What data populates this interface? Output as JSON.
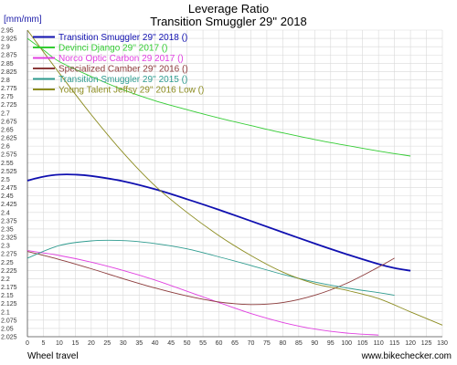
{
  "chart_data": {
    "type": "line",
    "title": "Leverage Ratio",
    "subtitle": "Transition Smuggler 29'' 2018",
    "ylabel": "[mm/mm]",
    "xlabel": "Wheel travel",
    "watermark": "www.bikechecker.com",
    "xlim": [
      0,
      130
    ],
    "ylim": [
      2.025,
      2.95
    ],
    "xticks": [
      0,
      5,
      10,
      15,
      20,
      25,
      30,
      35,
      40,
      45,
      50,
      55,
      60,
      65,
      70,
      75,
      80,
      85,
      90,
      95,
      100,
      105,
      110,
      115,
      120,
      125,
      130
    ],
    "yticks": [
      2.025,
      2.05,
      2.075,
      2.1,
      2.125,
      2.15,
      2.175,
      2.2,
      2.225,
      2.25,
      2.275,
      2.3,
      2.325,
      2.35,
      2.375,
      2.4,
      2.425,
      2.45,
      2.475,
      2.5,
      2.525,
      2.55,
      2.575,
      2.6,
      2.625,
      2.65,
      2.675,
      2.7,
      2.725,
      2.75,
      2.775,
      2.8,
      2.825,
      2.85,
      2.875,
      2.9,
      2.925,
      2.95
    ],
    "grid": true,
    "legend_position": "top-left",
    "series": [
      {
        "name": "Transition Smuggler 29'' 2018 ()",
        "color": "#1010b0",
        "width": 1.8,
        "x": [
          0,
          5,
          10,
          15,
          20,
          30,
          40,
          50,
          60,
          70,
          80,
          90,
          100,
          110,
          115,
          120
        ],
        "y": [
          2.496,
          2.508,
          2.514,
          2.514,
          2.51,
          2.494,
          2.47,
          2.44,
          2.408,
          2.374,
          2.34,
          2.306,
          2.274,
          2.244,
          2.232,
          2.224
        ]
      },
      {
        "name": "Devinci Django 29'' 2017 ()",
        "color": "#33cc33",
        "width": 0.9,
        "x": [
          0,
          5,
          10,
          20,
          30,
          40,
          50,
          60,
          70,
          80,
          90,
          100,
          110,
          120
        ],
        "y": [
          2.925,
          2.89,
          2.855,
          2.81,
          2.77,
          2.737,
          2.71,
          2.685,
          2.662,
          2.64,
          2.62,
          2.602,
          2.585,
          2.57
        ]
      },
      {
        "name": "Norco Optic Carbon 29 2017 ()",
        "color": "#e040e0",
        "width": 0.9,
        "x": [
          0,
          10,
          20,
          30,
          40,
          50,
          60,
          70,
          80,
          90,
          100,
          110
        ],
        "y": [
          2.285,
          2.27,
          2.25,
          2.225,
          2.196,
          2.162,
          2.128,
          2.095,
          2.068,
          2.048,
          2.036,
          2.03
        ]
      },
      {
        "name": "Specialized Camber 29'' 2016 ()",
        "color": "#8b3a3a",
        "width": 0.9,
        "x": [
          0,
          10,
          20,
          30,
          40,
          50,
          60,
          70,
          80,
          90,
          100,
          110,
          115
        ],
        "y": [
          2.282,
          2.258,
          2.23,
          2.2,
          2.172,
          2.148,
          2.13,
          2.122,
          2.128,
          2.15,
          2.186,
          2.235,
          2.262
        ]
      },
      {
        "name": "Transition Smuggler 29'' 2015 ()",
        "color": "#2e9b8f",
        "width": 0.9,
        "x": [
          0,
          10,
          20,
          30,
          40,
          50,
          60,
          70,
          80,
          90,
          100,
          110,
          115
        ],
        "y": [
          2.262,
          2.3,
          2.314,
          2.315,
          2.306,
          2.29,
          2.266,
          2.24,
          2.213,
          2.19,
          2.172,
          2.158,
          2.15
        ]
      },
      {
        "name": "Young Talent Jeffsy 29'' 2016 Low ()",
        "color": "#8c8c20",
        "width": 0.9,
        "x": [
          0,
          10,
          20,
          30,
          40,
          50,
          60,
          70,
          80,
          90,
          100,
          110,
          120,
          130
        ],
        "y": [
          2.95,
          2.82,
          2.695,
          2.58,
          2.48,
          2.4,
          2.33,
          2.27,
          2.22,
          2.185,
          2.165,
          2.14,
          2.1,
          2.06
        ]
      }
    ]
  }
}
